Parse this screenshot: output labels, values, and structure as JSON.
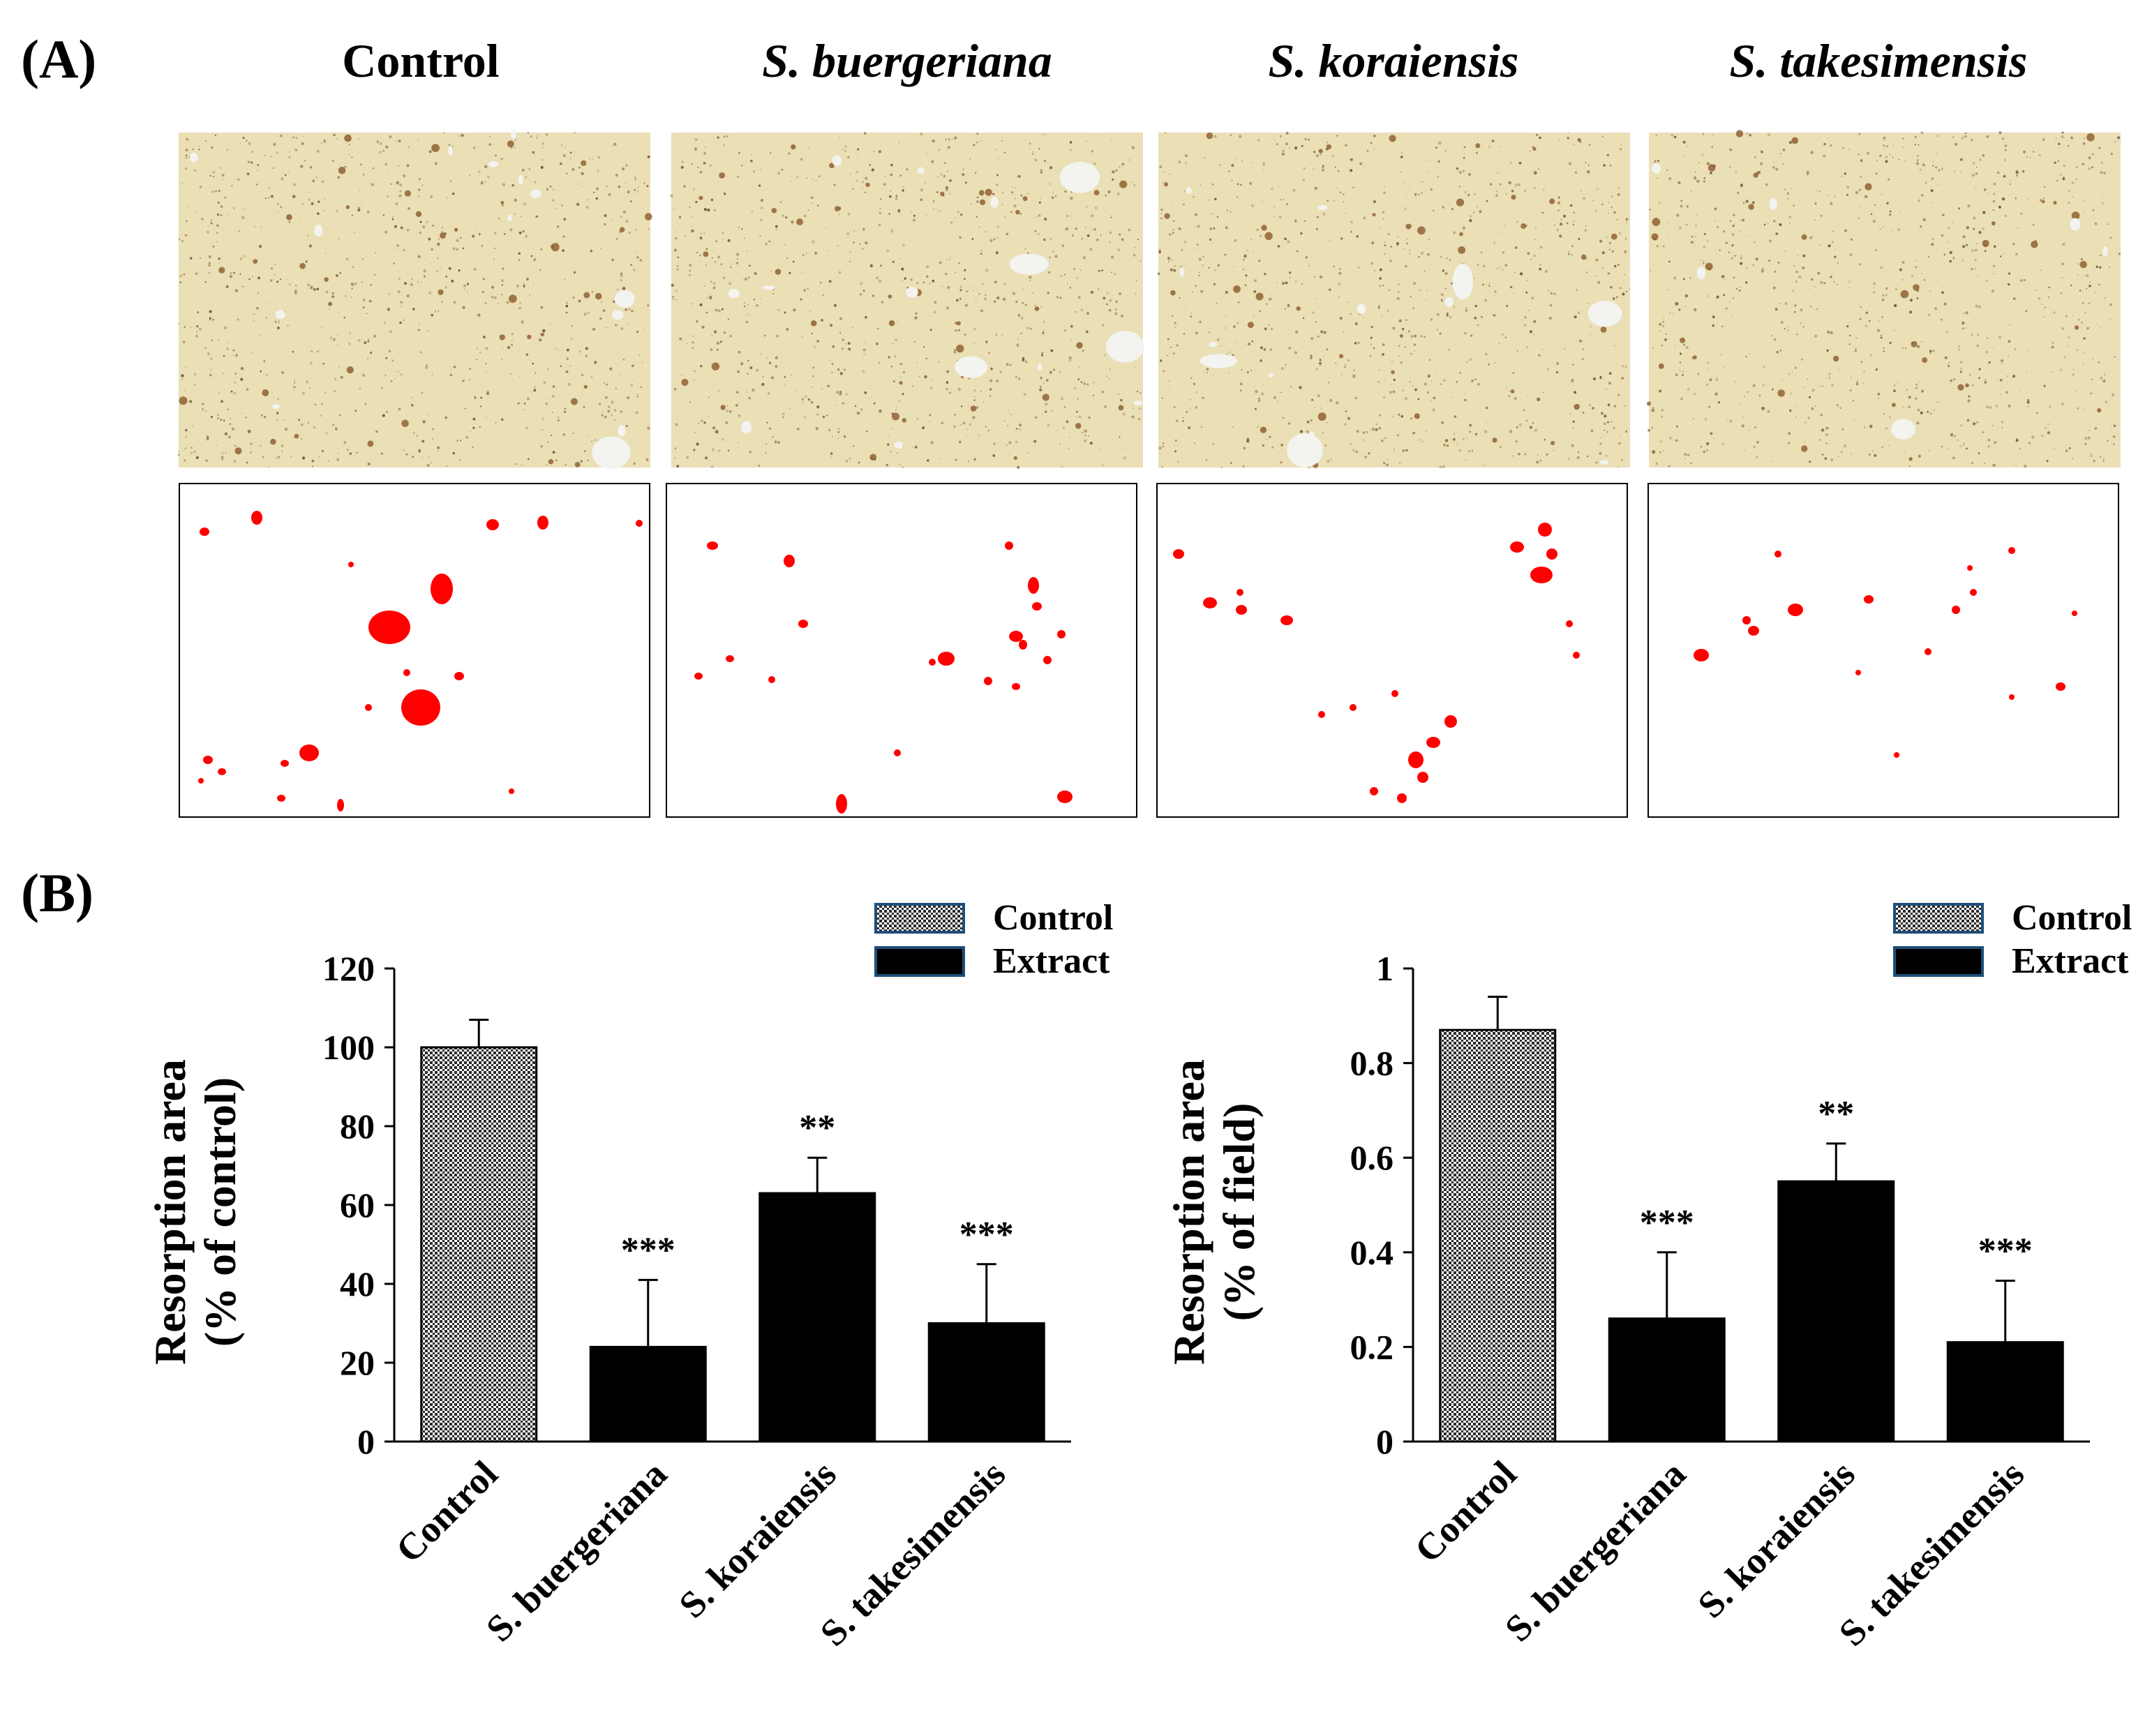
{
  "panel_a": {
    "label": "(A)",
    "columns": [
      "Control",
      "S. buergeriana",
      "S. koraiensis",
      "S. takesimensis"
    ]
  },
  "panel_b": {
    "label": "(B)"
  },
  "colors": {
    "photo_bg": "#eadfb5",
    "stain": "#8b5a2b",
    "pit": "#f3f3f0",
    "mask_spot": "#ff0000",
    "bar_extract": "#000000"
  },
  "chart_data": [
    {
      "type": "bar",
      "categories": [
        "Control",
        "S. buergeriana",
        "S. koraiensis",
        "S. takesimensis"
      ],
      "values": [
        100,
        24,
        63,
        30
      ],
      "errors": [
        7,
        17,
        9,
        15
      ],
      "significance": [
        "",
        "***",
        "**",
        "***"
      ],
      "bar_groups": [
        "Control",
        "Extract",
        "Extract",
        "Extract"
      ],
      "ylabel_lines": [
        "Resorption area",
        "(% of control)"
      ],
      "ylim": [
        0,
        120
      ],
      "yticks": [
        0,
        20,
        40,
        60,
        80,
        100,
        120
      ],
      "ytick_labels": [
        "0",
        "20",
        "40",
        "60",
        "80",
        "100",
        "120"
      ],
      "legend": [
        "Control",
        "Extract"
      ],
      "legend_position": "top-right"
    },
    {
      "type": "bar",
      "categories": [
        "Control",
        "S. buergeriana",
        "S. koraiensis",
        "S. takesimensis"
      ],
      "values": [
        0.87,
        0.26,
        0.55,
        0.21
      ],
      "errors": [
        0.07,
        0.14,
        0.08,
        0.13
      ],
      "significance": [
        "",
        "***",
        "**",
        "***"
      ],
      "bar_groups": [
        "Control",
        "Extract",
        "Extract",
        "Extract"
      ],
      "ylabel_lines": [
        "Resorption area",
        "(% of field)"
      ],
      "ylim": [
        0,
        1
      ],
      "yticks": [
        0,
        0.2,
        0.4,
        0.6,
        0.8,
        1
      ],
      "ytick_labels": [
        "0",
        "0.2",
        "0.4",
        "0.6",
        "0.8",
        "1"
      ],
      "legend": [
        "Control",
        "Extract"
      ],
      "legend_position": "top-right"
    }
  ]
}
